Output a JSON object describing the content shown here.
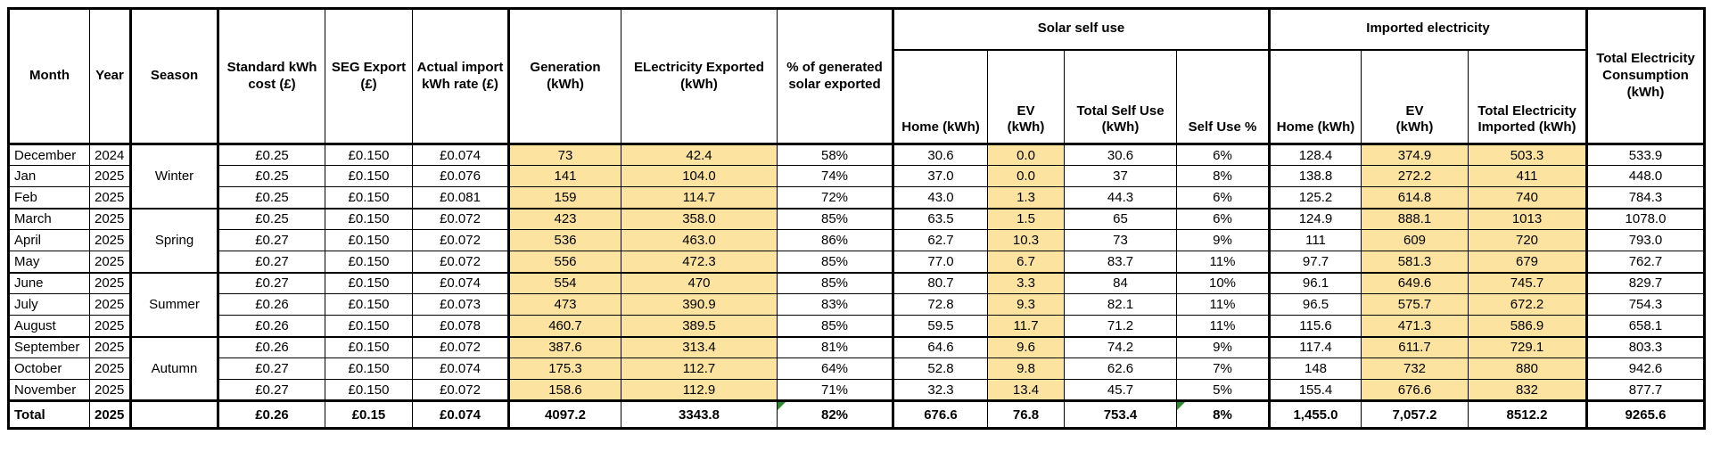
{
  "colors": {
    "highlight": "#FCE4A0",
    "flag_green": "#2E8B2E",
    "border": "#000000"
  },
  "headers": {
    "month": "Month",
    "year": "Year",
    "season": "Season",
    "standard_cost": "Standard kWh\ncost (£)",
    "seg_export": "SEG Export\n(£)",
    "actual_import_rate": "Actual import\nkWh rate (£)",
    "generation": "Generation\n(kWh)",
    "exported": "ELectricity Exported\n(kWh)",
    "pct_exported": "% of generated\nsolar exported",
    "solar_group": "Solar self use",
    "solar_home": "Home (kWh)",
    "solar_ev": "EV\n(kWh)",
    "solar_total": "Total Self Use\n(kWh)",
    "self_use_pct": "Self Use %",
    "imported_group": "Imported electricity",
    "imp_home": "Home (kWh)",
    "imp_ev": "EV\n(kWh)",
    "imp_total": "Total Electricity\nImported (kWh)",
    "total_consumption": "Total Electricity\nConsumption\n(kWh)"
  },
  "rows": [
    {
      "month": "December",
      "year": "2024",
      "season": "Winter",
      "std": "£0.25",
      "seg": "£0.150",
      "imp_rate": "£0.074",
      "gen": "73",
      "exp": "42.4",
      "pct": "58%",
      "s_home": "30.6",
      "s_ev": "0.0",
      "s_tot": "30.6",
      "su_pct": "6%",
      "i_home": "128.4",
      "i_ev": "374.9",
      "i_tot": "503.3",
      "cons": "533.9"
    },
    {
      "month": "Jan",
      "year": "2025",
      "std": "£0.25",
      "seg": "£0.150",
      "imp_rate": "£0.076",
      "gen": "141",
      "exp": "104.0",
      "pct": "74%",
      "s_home": "37.0",
      "s_ev": "0.0",
      "s_tot": "37",
      "su_pct": "8%",
      "i_home": "138.8",
      "i_ev": "272.2",
      "i_tot": "411",
      "cons": "448.0"
    },
    {
      "month": "Feb",
      "year": "2025",
      "std": "£0.25",
      "seg": "£0.150",
      "imp_rate": "£0.081",
      "gen": "159",
      "exp": "114.7",
      "pct": "72%",
      "s_home": "43.0",
      "s_ev": "1.3",
      "s_tot": "44.3",
      "su_pct": "6%",
      "i_home": "125.2",
      "i_ev": "614.8",
      "i_tot": "740",
      "cons": "784.3"
    },
    {
      "month": "March",
      "year": "2025",
      "season": "Spring",
      "std": "£0.25",
      "seg": "£0.150",
      "imp_rate": "£0.072",
      "gen": "423",
      "exp": "358.0",
      "pct": "85%",
      "s_home": "63.5",
      "s_ev": "1.5",
      "s_tot": "65",
      "su_pct": "6%",
      "i_home": "124.9",
      "i_ev": "888.1",
      "i_tot": "1013",
      "cons": "1078.0"
    },
    {
      "month": "April",
      "year": "2025",
      "std": "£0.27",
      "seg": "£0.150",
      "imp_rate": "£0.072",
      "gen": "536",
      "exp": "463.0",
      "pct": "86%",
      "s_home": "62.7",
      "s_ev": "10.3",
      "s_tot": "73",
      "su_pct": "9%",
      "i_home": "111",
      "i_ev": "609",
      "i_tot": "720",
      "cons": "793.0"
    },
    {
      "month": "May",
      "year": "2025",
      "std": "£0.27",
      "seg": "£0.150",
      "imp_rate": "£0.072",
      "gen": "556",
      "exp": "472.3",
      "pct": "85%",
      "s_home": "77.0",
      "s_ev": "6.7",
      "s_tot": "83.7",
      "su_pct": "11%",
      "i_home": "97.7",
      "i_ev": "581.3",
      "i_tot": "679",
      "cons": "762.7"
    },
    {
      "month": "June",
      "year": "2025",
      "season": "Summer",
      "std": "£0.27",
      "seg": "£0.150",
      "imp_rate": "£0.074",
      "gen": "554",
      "exp": "470",
      "pct": "85%",
      "s_home": "80.7",
      "s_ev": "3.3",
      "s_tot": "84",
      "su_pct": "10%",
      "i_home": "96.1",
      "i_ev": "649.6",
      "i_tot": "745.7",
      "cons": "829.7"
    },
    {
      "month": "July",
      "year": "2025",
      "std": "£0.26",
      "seg": "£0.150",
      "imp_rate": "£0.073",
      "gen": "473",
      "exp": "390.9",
      "pct": "83%",
      "s_home": "72.8",
      "s_ev": "9.3",
      "s_tot": "82.1",
      "su_pct": "11%",
      "i_home": "96.5",
      "i_ev": "575.7",
      "i_tot": "672.2",
      "cons": "754.3"
    },
    {
      "month": "August",
      "year": "2025",
      "std": "£0.26",
      "seg": "£0.150",
      "imp_rate": "£0.078",
      "gen": "460.7",
      "exp": "389.5",
      "pct": "85%",
      "s_home": "59.5",
      "s_ev": "11.7",
      "s_tot": "71.2",
      "su_pct": "11%",
      "i_home": "115.6",
      "i_ev": "471.3",
      "i_tot": "586.9",
      "cons": "658.1"
    },
    {
      "month": "September",
      "year": "2025",
      "season": "Autumn",
      "std": "£0.26",
      "seg": "£0.150",
      "imp_rate": "£0.072",
      "gen": "387.6",
      "exp": "313.4",
      "pct": "81%",
      "s_home": "64.6",
      "s_ev": "9.6",
      "s_tot": "74.2",
      "su_pct": "9%",
      "i_home": "117.4",
      "i_ev": "611.7",
      "i_tot": "729.1",
      "cons": "803.3"
    },
    {
      "month": "October",
      "year": "2025",
      "std": "£0.27",
      "seg": "£0.150",
      "imp_rate": "£0.074",
      "gen": "175.3",
      "exp": "112.7",
      "pct": "64%",
      "s_home": "52.8",
      "s_ev": "9.8",
      "s_tot": "62.6",
      "su_pct": "7%",
      "i_home": "148",
      "i_ev": "732",
      "i_tot": "880",
      "cons": "942.6"
    },
    {
      "month": "November",
      "year": "2025",
      "std": "£0.27",
      "seg": "£0.150",
      "imp_rate": "£0.072",
      "gen": "158.6",
      "exp": "112.9",
      "pct": "71%",
      "s_home": "32.3",
      "s_ev": "13.4",
      "s_tot": "45.7",
      "su_pct": "5%",
      "i_home": "155.4",
      "i_ev": "676.6",
      "i_tot": "832",
      "cons": "877.7"
    }
  ],
  "total": {
    "month": "Total",
    "year": "2025",
    "season": "",
    "std": "£0.26",
    "seg": "£0.15",
    "imp_rate": "£0.074",
    "gen": "4097.2",
    "exp": "3343.8",
    "pct": "82%",
    "s_home": "676.6",
    "s_ev": "76.8",
    "s_tot": "753.4",
    "su_pct": "8%",
    "i_home": "1,455.0",
    "i_ev": "7,057.2",
    "i_tot": "8512.2",
    "cons": "9265.6",
    "flags": [
      "pct",
      "su_pct"
    ]
  }
}
